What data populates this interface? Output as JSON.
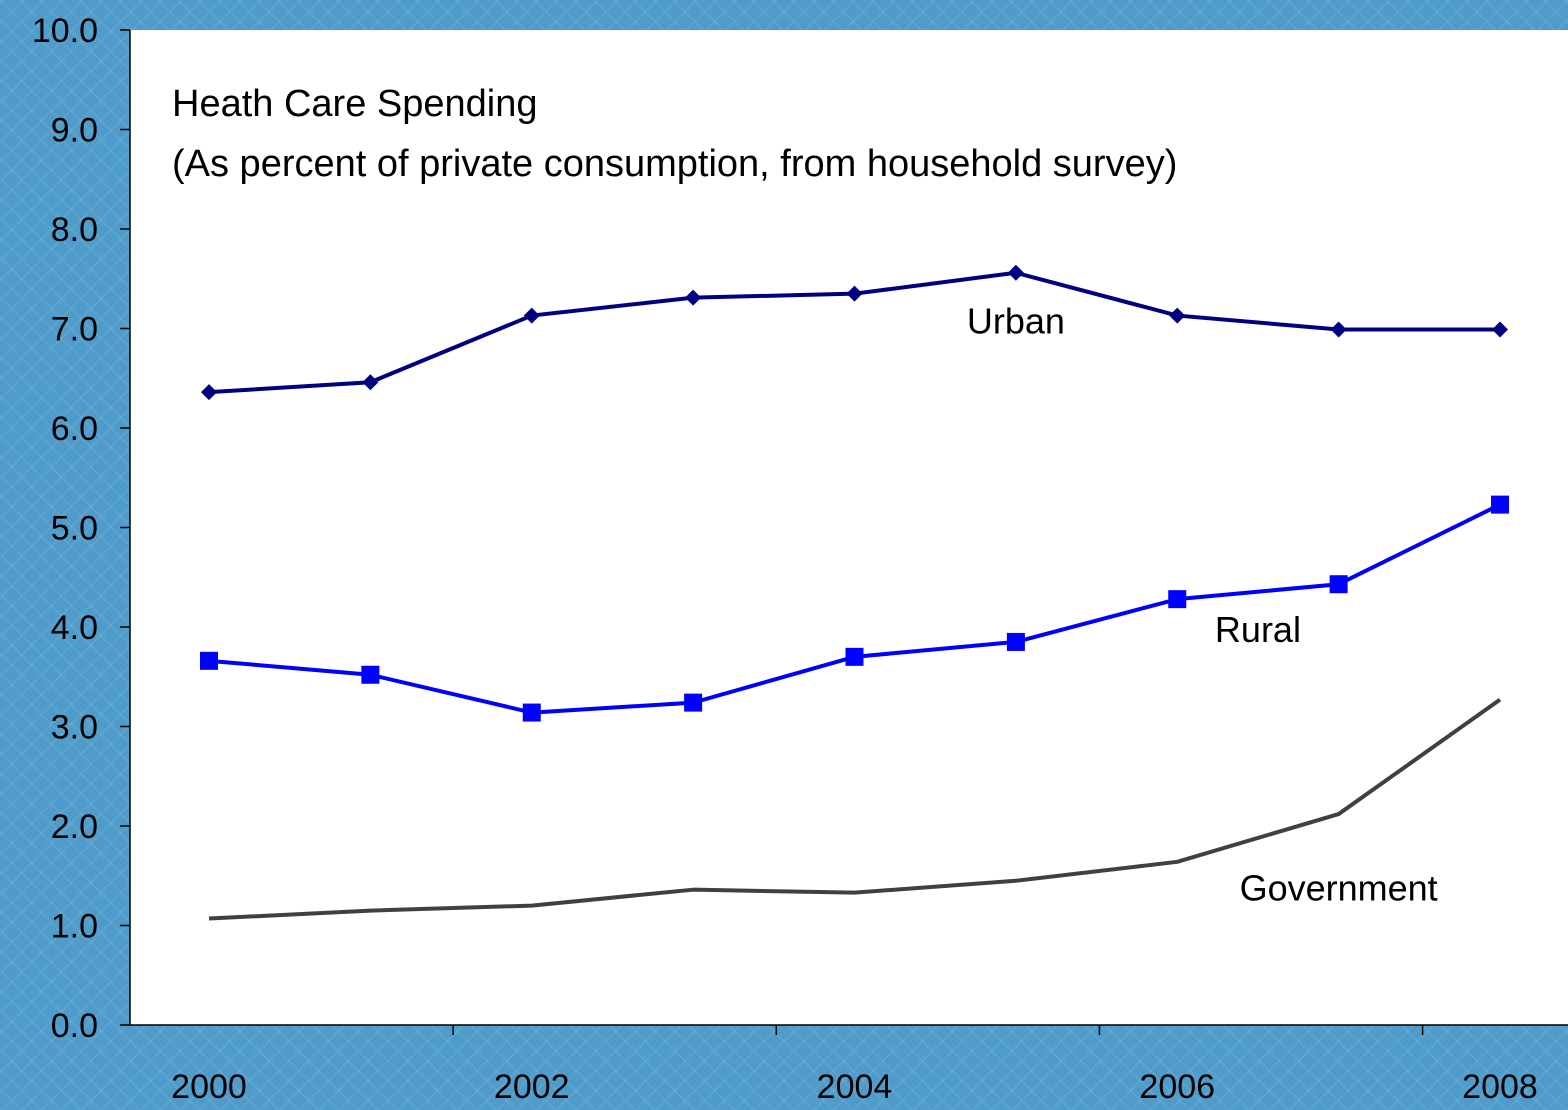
{
  "chart_data": {
    "type": "line",
    "title": "Heath Care Spending",
    "subtitle": "(As percent of private consumption, from household survey)",
    "xlabel": "",
    "ylabel": "",
    "x": [
      2000,
      2001,
      2002,
      2003,
      2004,
      2005,
      2006,
      2007,
      2008
    ],
    "xlim": [
      2000,
      2008
    ],
    "x_tick_labels": [
      "2000",
      "2002",
      "2004",
      "2006",
      "2008"
    ],
    "ylim": [
      0,
      10
    ],
    "y_tick_labels": [
      "0.0",
      "1.0",
      "2.0",
      "3.0",
      "4.0",
      "5.0",
      "6.0",
      "7.0",
      "8.0",
      "9.0",
      "10.0"
    ],
    "grid": false,
    "legend": "none (series labeled inline)",
    "series": [
      {
        "name": "Urban",
        "color": "#000080",
        "marker": "diamond",
        "values": [
          6.36,
          6.46,
          7.13,
          7.31,
          7.35,
          7.56,
          7.13,
          6.99,
          6.99
        ]
      },
      {
        "name": "Rural",
        "color": "#0000ff",
        "marker": "square",
        "values": [
          3.66,
          3.52,
          3.14,
          3.24,
          3.7,
          3.85,
          4.28,
          4.43,
          5.23
        ]
      },
      {
        "name": "Government",
        "color": "#404040",
        "marker": "none",
        "values": [
          1.07,
          1.15,
          1.2,
          1.36,
          1.33,
          1.45,
          1.64,
          2.12,
          3.27
        ]
      }
    ]
  }
}
